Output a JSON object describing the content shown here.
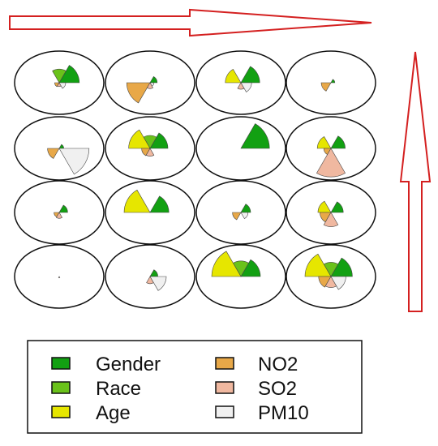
{
  "colors": {
    "Gender": "#12a012",
    "Race": "#6ac21a",
    "Age": "#e6e600",
    "NO2": "#e8a848",
    "SO2": "#f0b8a0",
    "PM10": "#f0f0f0",
    "arrow": "#d42020",
    "outline": "#111111"
  },
  "variables": [
    "Gender",
    "Race",
    "Age",
    "NO2",
    "SO2",
    "PM10"
  ],
  "legend": {
    "items": [
      {
        "label": "Gender",
        "key": "Gender"
      },
      {
        "label": "Race",
        "key": "Race"
      },
      {
        "label": "Age",
        "key": "Age"
      },
      {
        "label": "NO2",
        "key": "NO2"
      },
      {
        "label": "SO2",
        "key": "SO2"
      },
      {
        "label": "PM10",
        "key": "PM10"
      }
    ]
  },
  "grid": {
    "rows": 4,
    "cols": 4,
    "cells": [
      [
        {
          "Gender": 0.62,
          "Race": 0.42,
          "Age": 0.0,
          "NO2": 0.14,
          "SO2": 0.12,
          "PM10": 0.2
        },
        {
          "Gender": 0.22,
          "Race": 0.0,
          "Age": 0.0,
          "NO2": 0.72,
          "SO2": 0.18,
          "PM10": 0.12
        },
        {
          "Gender": 0.58,
          "Race": 0.0,
          "Age": 0.48,
          "NO2": 0.0,
          "SO2": 0.2,
          "PM10": 0.33
        },
        {
          "Gender": 0.12,
          "Race": 0.0,
          "Age": 0.0,
          "NO2": 0.3,
          "SO2": 0.0,
          "PM10": 0.0
        }
      ],
      [
        {
          "Gender": 0.14,
          "Race": 0.0,
          "Age": 0.0,
          "NO2": 0.36,
          "SO2": 0.0,
          "PM10": 0.92
        },
        {
          "Gender": 0.55,
          "Race": 0.4,
          "Age": 0.66,
          "NO2": 0.26,
          "SO2": 0.24,
          "PM10": 0.0
        },
        {
          "Gender": 0.88,
          "Race": 0.0,
          "Age": 0.0,
          "NO2": 0.0,
          "SO2": 0.0,
          "PM10": 0.0
        },
        {
          "Gender": 0.44,
          "Race": 0.0,
          "Age": 0.42,
          "NO2": 0.22,
          "SO2": 0.88,
          "PM10": 0.0
        }
      ],
      [
        {
          "Gender": 0.26,
          "Race": 0.0,
          "Age": 0.0,
          "NO2": 0.16,
          "SO2": 0.18,
          "PM10": 0.0
        },
        {
          "Gender": 0.58,
          "Race": 0.0,
          "Age": 0.8,
          "NO2": 0.0,
          "SO2": 0.0,
          "PM10": 0.0
        },
        {
          "Gender": 0.3,
          "Race": 0.0,
          "Age": 0.0,
          "NO2": 0.26,
          "SO2": 0.0,
          "PM10": 0.22
        },
        {
          "Gender": 0.38,
          "Race": 0.0,
          "Age": 0.4,
          "NO2": 0.34,
          "SO2": 0.44,
          "PM10": 0.0
        }
      ],
      [
        {
          "Gender": 0.0,
          "Race": 0.0,
          "Age": 0.0,
          "NO2": 0.0,
          "SO2": 0.04,
          "PM10": 0.0
        },
        {
          "Gender": 0.24,
          "Race": 0.0,
          "Age": 0.0,
          "NO2": 0.0,
          "SO2": 0.22,
          "PM10": 0.5
        },
        {
          "Gender": 0.6,
          "Race": 0.48,
          "Age": 0.9,
          "NO2": 0.0,
          "SO2": 0.0,
          "PM10": 0.0
        },
        {
          "Gender": 0.66,
          "Race": 0.44,
          "Age": 0.8,
          "NO2": 0.38,
          "SO2": 0.34,
          "PM10": 0.46
        }
      ]
    ]
  }
}
